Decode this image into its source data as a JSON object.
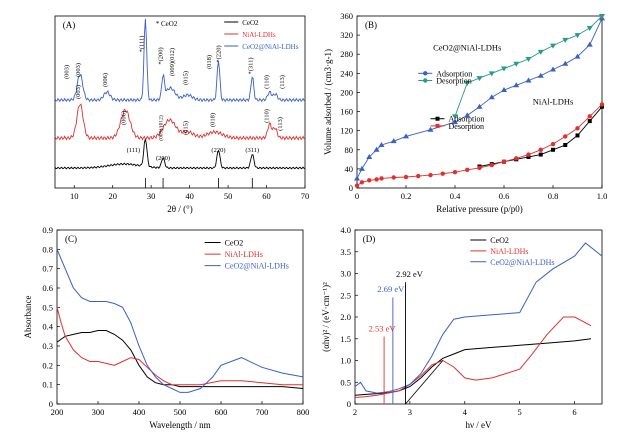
{
  "chart_data": [
    {
      "panel": "(A)",
      "type": "line",
      "xlabel": "2θ / (°)",
      "xlim": [
        5,
        70
      ],
      "xticks": [
        "10",
        "20",
        "30",
        "40",
        "50",
        "60",
        "70"
      ],
      "legend": [
        "CeO2",
        "NiAl-LDHs",
        "CeO2@NiAl-LDHs"
      ],
      "legend_marker": "* CeO2",
      "colors": {
        "CeO2": "#000000",
        "NiAl-LDHs": "#e23030",
        "CeO2@NiAl-LDHs": "#3a5fc8"
      },
      "ceo2_ref_lines": [
        28.5,
        33.1,
        47.5,
        56.3
      ],
      "labels": {
        "ceo2": [
          "(111)",
          "(200)",
          "(220)",
          "(311)"
        ],
        "ldh": [
          "(003)",
          "(006)",
          "(009)/(012)",
          "(015)",
          "(018)",
          "(110)",
          "(113)"
        ],
        "composite": [
          "(003)",
          "(003)",
          "(006)",
          "*(111)",
          "*(200)",
          "(009)(012)",
          "(015)",
          "(018)",
          "*(220)",
          "*(311)",
          "(110)",
          "(113)"
        ]
      }
    },
    {
      "panel": "(B)",
      "type": "scatter",
      "xlabel": "Relative pressure (p/p0)",
      "ylabel": "Volume adsorbed / (cm3·g-1)",
      "xlim": [
        0,
        1.0
      ],
      "ylim": [
        0,
        360
      ],
      "xticks": [
        "0",
        "0.2",
        "0.4",
        "0.6",
        "0.8",
        "1.0"
      ],
      "yticks": [
        "0",
        "40",
        "80",
        "120",
        "160",
        "200",
        "240",
        "280",
        "320",
        "360"
      ],
      "annotations": [
        "CeO2@NiAl-LDHs",
        "NiAl-LDHs"
      ],
      "legend_top": [
        "Adsorption",
        "Desorption"
      ],
      "legend_bottom": [
        "Adsorption",
        "Desorption"
      ],
      "series": [
        {
          "name": "CeO2@NiAl-LDHs Adsorption",
          "color": "#3a5fc8",
          "x": [
            0,
            0.02,
            0.05,
            0.08,
            0.1,
            0.15,
            0.2,
            0.3,
            0.4,
            0.45,
            0.5,
            0.55,
            0.6,
            0.65,
            0.7,
            0.75,
            0.8,
            0.85,
            0.9,
            0.95,
            1.0
          ],
          "y": [
            20,
            40,
            65,
            80,
            90,
            98,
            108,
            122,
            138,
            152,
            170,
            190,
            205,
            215,
            225,
            235,
            248,
            260,
            275,
            300,
            355
          ]
        },
        {
          "name": "CeO2@NiAl-LDHs Desorption",
          "color": "#2a9a8a",
          "x": [
            1.0,
            0.95,
            0.9,
            0.85,
            0.8,
            0.75,
            0.7,
            0.65,
            0.6,
            0.55,
            0.5,
            0.45,
            0.4
          ],
          "y": [
            360,
            335,
            320,
            310,
            298,
            285,
            270,
            260,
            250,
            240,
            230,
            220,
            150
          ]
        },
        {
          "name": "NiAl-LDHs Adsorption",
          "color": "#000000",
          "x": [
            0.5,
            0.55,
            0.6,
            0.65,
            0.7,
            0.75,
            0.8,
            0.85,
            0.9,
            0.95,
            1.0
          ],
          "y": [
            45,
            50,
            55,
            60,
            65,
            70,
            80,
            90,
            110,
            140,
            170
          ]
        },
        {
          "name": "NiAl-LDHs Desorption",
          "color": "#e23030",
          "x": [
            0,
            0.02,
            0.05,
            0.08,
            0.1,
            0.15,
            0.2,
            0.25,
            0.3,
            0.35,
            0.4,
            0.45,
            0.5,
            0.55,
            0.6,
            0.65,
            0.7,
            0.75,
            0.8,
            0.85,
            0.9,
            0.95,
            1.0
          ],
          "y": [
            5,
            12,
            16,
            18,
            20,
            22,
            23,
            25,
            27,
            30,
            33,
            38,
            42,
            48,
            55,
            62,
            70,
            80,
            92,
            108,
            125,
            150,
            175
          ]
        }
      ]
    },
    {
      "panel": "(C)",
      "type": "line",
      "xlabel": "Wavelength / nm",
      "ylabel": "Absorbance",
      "xlim": [
        200,
        800
      ],
      "ylim": [
        0,
        0.9
      ],
      "xticks": [
        "200",
        "300",
        "400",
        "500",
        "600",
        "700",
        "800"
      ],
      "yticks": [
        "0",
        "0.1",
        "0.2",
        "0.3",
        "0.4",
        "0.5",
        "0.6",
        "0.7",
        "0.8",
        "0.9"
      ],
      "legend": [
        "CeO2",
        "NiAl-LDHs",
        "CeO2@NiAl-LDHs"
      ],
      "series": [
        {
          "name": "CeO2",
          "color": "#000000",
          "x": [
            200,
            220,
            240,
            260,
            280,
            300,
            320,
            340,
            360,
            380,
            400,
            420,
            440,
            460,
            480,
            500,
            550,
            600,
            650,
            700,
            750,
            800
          ],
          "y": [
            0.32,
            0.35,
            0.36,
            0.37,
            0.37,
            0.38,
            0.38,
            0.36,
            0.33,
            0.28,
            0.2,
            0.14,
            0.11,
            0.1,
            0.1,
            0.09,
            0.09,
            0.09,
            0.09,
            0.09,
            0.09,
            0.08
          ]
        },
        {
          "name": "NiAl-LDHs",
          "color": "#e23030",
          "x": [
            200,
            210,
            220,
            240,
            260,
            280,
            300,
            320,
            340,
            360,
            380,
            400,
            420,
            440,
            460,
            480,
            500,
            550,
            600,
            650,
            700,
            750,
            800
          ],
          "y": [
            0.5,
            0.42,
            0.35,
            0.28,
            0.24,
            0.22,
            0.22,
            0.21,
            0.2,
            0.22,
            0.24,
            0.23,
            0.19,
            0.15,
            0.12,
            0.1,
            0.1,
            0.1,
            0.12,
            0.12,
            0.11,
            0.1,
            0.1
          ]
        },
        {
          "name": "CeO2@NiAl-LDHs",
          "color": "#3a5fc8",
          "x": [
            200,
            210,
            220,
            240,
            260,
            280,
            300,
            320,
            340,
            360,
            380,
            400,
            420,
            440,
            460,
            480,
            500,
            520,
            550,
            580,
            600,
            650,
            680,
            700,
            750,
            800
          ],
          "y": [
            0.8,
            0.75,
            0.7,
            0.6,
            0.55,
            0.53,
            0.53,
            0.53,
            0.52,
            0.5,
            0.42,
            0.3,
            0.2,
            0.14,
            0.1,
            0.08,
            0.06,
            0.06,
            0.08,
            0.14,
            0.2,
            0.24,
            0.21,
            0.19,
            0.16,
            0.14
          ]
        }
      ]
    },
    {
      "panel": "(D)",
      "type": "line",
      "xlabel": "hν / eV",
      "ylabel": "(αhν)² / (eV·cm⁻¹)²",
      "xlim": [
        2.0,
        6.5
      ],
      "ylim": [
        0,
        4.0
      ],
      "xticks": [
        "2",
        "3",
        "4",
        "5",
        "6"
      ],
      "yticks": [
        "0",
        "0.5",
        "1.0",
        "1.5",
        "2.0",
        "2.5",
        "3.0",
        "3.5",
        "4.0"
      ],
      "legend": [
        "CeO2",
        "NiAl-LDHs",
        "CeO2@NiAl-LDHs"
      ],
      "annotations": [
        {
          "text": "2.92 eV",
          "x": 2.92,
          "color": "#000000"
        },
        {
          "text": "2.69 eV",
          "x": 2.69,
          "color": "#3a5fc8"
        },
        {
          "text": "2.53 eV",
          "x": 2.53,
          "color": "#e23030"
        }
      ],
      "series": [
        {
          "name": "CeO2",
          "color": "#000000",
          "x": [
            2.0,
            2.2,
            2.4,
            2.6,
            2.8,
            3.0,
            3.2,
            3.4,
            3.6,
            3.8,
            4.0,
            4.5,
            5.0,
            5.5,
            6.0,
            6.3
          ],
          "y": [
            0.2,
            0.22,
            0.24,
            0.26,
            0.3,
            0.4,
            0.6,
            0.85,
            1.05,
            1.15,
            1.25,
            1.3,
            1.35,
            1.4,
            1.45,
            1.5
          ]
        },
        {
          "name": "NiAl-LDHs",
          "color": "#e23030",
          "x": [
            2.0,
            2.2,
            2.4,
            2.6,
            2.8,
            3.0,
            3.2,
            3.4,
            3.6,
            3.8,
            4.0,
            4.2,
            4.5,
            5.0,
            5.2,
            5.5,
            5.8,
            6.0,
            6.3
          ],
          "y": [
            0.15,
            0.17,
            0.2,
            0.25,
            0.3,
            0.45,
            0.65,
            0.9,
            1.0,
            0.85,
            0.6,
            0.55,
            0.6,
            0.8,
            1.1,
            1.6,
            2.0,
            2.0,
            1.8
          ]
        },
        {
          "name": "CeO2@NiAl-LDHs",
          "color": "#3a5fc8",
          "x": [
            2.0,
            2.1,
            2.2,
            2.4,
            2.6,
            2.8,
            3.0,
            3.2,
            3.4,
            3.6,
            3.8,
            4.0,
            4.5,
            5.0,
            5.3,
            5.6,
            6.0,
            6.2,
            6.5
          ],
          "y": [
            0.4,
            0.5,
            0.3,
            0.25,
            0.28,
            0.35,
            0.45,
            0.7,
            1.1,
            1.6,
            1.95,
            2.0,
            2.05,
            2.1,
            2.8,
            3.1,
            3.4,
            3.7,
            3.4
          ]
        }
      ]
    }
  ]
}
